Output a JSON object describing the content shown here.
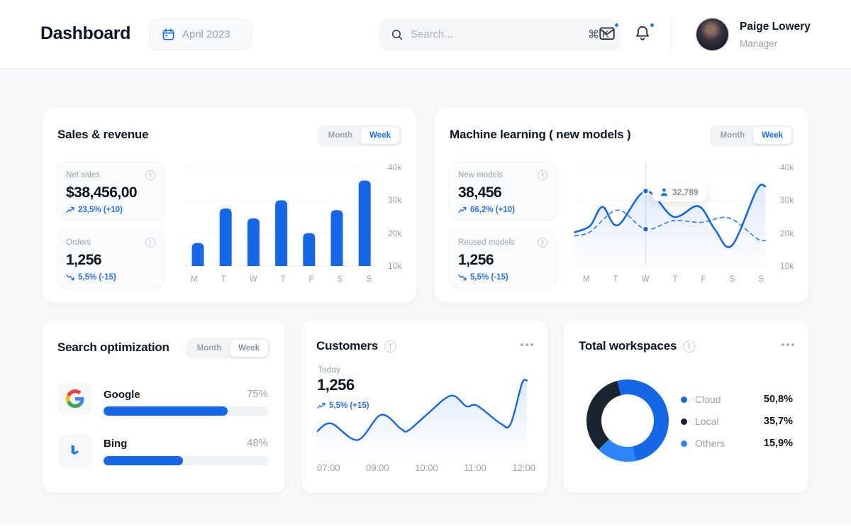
{
  "header": {
    "title": "Dashboard",
    "date": "April 2023",
    "search": {
      "placeholder": "Search...",
      "shortcut_cmd": "⌘",
      "shortcut_key": "K"
    },
    "user": {
      "name": "Paige Lowery",
      "role": "Manager"
    }
  },
  "colors": {
    "accent": "#1667e8",
    "donut_cloud": "#1667e8",
    "donut_local": "#1b2431",
    "donut_others": "#2e86ff"
  },
  "cards": {
    "sales": {
      "title": "Sales & revenue",
      "toggle": {
        "month": "Month",
        "week": "Week",
        "active": "week"
      },
      "stats": [
        {
          "label": "Net sales",
          "value": "$38,456,00",
          "delta": "23,5% (+10)",
          "direction": "up"
        },
        {
          "label": "Orders",
          "value": "1,256",
          "delta": "5,5% (-15)",
          "direction": "down"
        }
      ]
    },
    "ml": {
      "title": "Machine learning ( new models )",
      "toggle": {
        "month": "Month",
        "week": "Week",
        "active": "week"
      },
      "stats": [
        {
          "label": "New models",
          "value": "38,456",
          "delta": "66,2% (+10)",
          "direction": "up"
        },
        {
          "label": "Reused models",
          "value": "1,256",
          "delta": "5,5% (-15)",
          "direction": "down"
        }
      ],
      "tooltip_value": "32,789"
    },
    "search_opt": {
      "title": "Search optimization",
      "toggle": {
        "month": "Month",
        "week": "Week",
        "active": "week"
      },
      "engines": [
        {
          "name": "Google",
          "percent": 75,
          "percent_label": "75%"
        },
        {
          "name": "Bing",
          "percent": 48,
          "percent_label": "48%"
        }
      ]
    },
    "customers": {
      "title": "Customers",
      "period": "Today",
      "value": "1,256",
      "delta": "5,5% (+15)",
      "direction": "up"
    },
    "workspaces": {
      "title": "Total workspaces",
      "legend": [
        {
          "label": "Cloud",
          "value": "50,8%"
        },
        {
          "label": "Local",
          "value": "35,7%"
        },
        {
          "label": "Others",
          "value": "15,9%"
        }
      ]
    }
  },
  "chart_data": [
    {
      "id": "sales",
      "type": "bar",
      "title": "Sales & revenue (Week)",
      "categories": [
        "M",
        "T",
        "W",
        "T",
        "F",
        "S",
        "S"
      ],
      "values": [
        17,
        27.5,
        24.5,
        30,
        20,
        27,
        36
      ],
      "unit": "k",
      "ylim": [
        10,
        40
      ],
      "yticks": [
        "40k",
        "30k",
        "20k",
        "10k"
      ],
      "bar_color": "#1667e8"
    },
    {
      "id": "ml",
      "type": "line",
      "title": "Machine learning new models (Week)",
      "categories": [
        "M",
        "T",
        "W",
        "T",
        "F",
        "S",
        "S"
      ],
      "ylim": [
        10,
        40
      ],
      "unit": "k",
      "yticks": [
        "40k",
        "30k",
        "20k",
        "10k"
      ],
      "series": [
        {
          "name": "current",
          "style": "solid",
          "points": [
            [
              -0.55,
              20.3
            ],
            [
              0,
              22.2
            ],
            [
              0.45,
              28
            ],
            [
              1,
              22.4
            ],
            [
              2,
              32.8
            ],
            [
              3,
              25
            ],
            [
              3.9,
              28.2
            ],
            [
              4.5,
              21
            ],
            [
              5.1,
              16.2
            ],
            [
              6,
              33.2
            ],
            [
              6.3,
              34.2
            ]
          ]
        },
        {
          "name": "previous",
          "style": "dashed",
          "points": [
            [
              -0.55,
              19.2
            ],
            [
              0,
              20.4
            ],
            [
              1,
              27
            ],
            [
              2,
              21.2
            ],
            [
              3,
              23.8
            ],
            [
              4,
              23.3
            ],
            [
              5,
              24.6
            ],
            [
              6,
              18.4
            ],
            [
              6.3,
              17.8
            ]
          ]
        }
      ],
      "annotation": {
        "day_index": 2,
        "day": "W",
        "label": "32,789",
        "solid_value": 32.8,
        "dashed_value": 21.2
      }
    },
    {
      "id": "customers",
      "type": "area",
      "title": "Customers today",
      "xticks": [
        "07:00",
        "09:00",
        "10:00",
        "11:00",
        "12:00"
      ],
      "points_rel": [
        [
          0,
          0.32
        ],
        [
          0.065,
          0.416
        ],
        [
          0.186,
          0.216
        ],
        [
          0.293,
          0.52
        ],
        [
          0.384,
          0.352
        ],
        [
          0.417,
          0.328
        ],
        [
          0.498,
          0.512
        ],
        [
          0.612,
          0.752
        ],
        [
          0.684,
          0.624
        ],
        [
          0.733,
          0.632
        ],
        [
          0.84,
          0.416
        ],
        [
          0.886,
          0.408
        ],
        [
          0.938,
          0.896
        ],
        [
          0.961,
          0.936
        ]
      ],
      "line_color": "#1667e8"
    },
    {
      "id": "workspaces",
      "type": "donut",
      "title": "Total workspaces",
      "start_angle_deg": -15,
      "slices": [
        {
          "label": "Cloud",
          "value": 50.8,
          "color": "#1667e8"
        },
        {
          "label": "Others",
          "value": 15.9,
          "color": "#2e86ff"
        },
        {
          "label": "Local",
          "value": 35.7,
          "color": "#1b2431"
        }
      ]
    }
  ]
}
